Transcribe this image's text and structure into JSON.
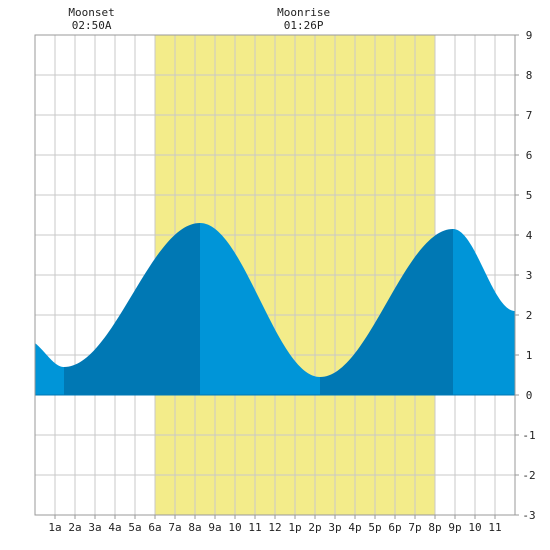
{
  "chart_data": {
    "type": "area",
    "title": "",
    "xlabel": "",
    "ylabel": "",
    "x_range_hours": [
      0,
      24
    ],
    "ylim": [
      -3,
      9
    ],
    "y_ticks": [
      -3,
      -2,
      -1,
      0,
      1,
      2,
      3,
      4,
      5,
      6,
      7,
      8,
      9
    ],
    "x_ticks": [
      {
        "hour": 1,
        "label": "1a"
      },
      {
        "hour": 2,
        "label": "2a"
      },
      {
        "hour": 3,
        "label": "3a"
      },
      {
        "hour": 4,
        "label": "4a"
      },
      {
        "hour": 5,
        "label": "5a"
      },
      {
        "hour": 6,
        "label": "6a"
      },
      {
        "hour": 7,
        "label": "7a"
      },
      {
        "hour": 8,
        "label": "8a"
      },
      {
        "hour": 9,
        "label": "9a"
      },
      {
        "hour": 10,
        "label": "10"
      },
      {
        "hour": 11,
        "label": "11"
      },
      {
        "hour": 12,
        "label": "12"
      },
      {
        "hour": 13,
        "label": "1p"
      },
      {
        "hour": 14,
        "label": "2p"
      },
      {
        "hour": 15,
        "label": "3p"
      },
      {
        "hour": 16,
        "label": "4p"
      },
      {
        "hour": 17,
        "label": "5p"
      },
      {
        "hour": 18,
        "label": "6p"
      },
      {
        "hour": 19,
        "label": "7p"
      },
      {
        "hour": 20,
        "label": "8p"
      },
      {
        "hour": 21,
        "label": "9p"
      },
      {
        "hour": 22,
        "label": "10"
      },
      {
        "hour": 23,
        "label": "11"
      }
    ],
    "grid": true,
    "daylight": {
      "start_hour": 6.0,
      "end_hour": 20.0
    },
    "tide_extrema": [
      {
        "hour": 1.45,
        "height": 0.7,
        "kind": "low"
      },
      {
        "hour": 8.25,
        "height": 4.3,
        "kind": "high"
      },
      {
        "hour": 14.25,
        "height": 0.45,
        "kind": "low"
      },
      {
        "hour": 20.9,
        "height": 4.15,
        "kind": "high"
      }
    ],
    "start_height": 1.3,
    "end_height": 2.1,
    "moon_events": [
      {
        "name": "Moonset",
        "time": "02:50A",
        "hour": 2.83
      },
      {
        "name": "Moonrise",
        "time": "01:26P",
        "hour": 13.43
      }
    ],
    "colors": {
      "daylight": "#f3ec8a",
      "rising_tide": "#0078b4",
      "falling_tide": "#0095d8",
      "grid": "#c8c8c8",
      "border": "#999999"
    }
  }
}
